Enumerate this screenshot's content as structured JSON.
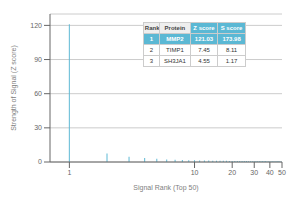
{
  "chart_data": {
    "type": "bar",
    "xlabel": "Signal Rank (Top 50)",
    "ylabel": "Strength of Signal (Z score)",
    "x": [
      1,
      2,
      3,
      4,
      5,
      6,
      7,
      8,
      9,
      10,
      11,
      12,
      13,
      14,
      15,
      16,
      17,
      18,
      19,
      20,
      21,
      22,
      23,
      24,
      25,
      26,
      27,
      28,
      29,
      30,
      31,
      32,
      33,
      34,
      35,
      36,
      37,
      38,
      39,
      40,
      41,
      42,
      43,
      44,
      45,
      46,
      47,
      48,
      49,
      50
    ],
    "values": [
      121.03,
      7.45,
      4.55,
      3.5,
      2.8,
      2.3,
      2.0,
      1.8,
      1.6,
      1.5,
      1.4,
      1.3,
      1.25,
      1.2,
      1.15,
      1.1,
      1.05,
      1.0,
      0.95,
      0.9,
      0.88,
      0.86,
      0.84,
      0.82,
      0.8,
      0.78,
      0.76,
      0.74,
      0.72,
      0.7,
      0.68,
      0.66,
      0.64,
      0.62,
      0.6,
      0.58,
      0.56,
      0.54,
      0.52,
      0.5,
      0.48,
      0.46,
      0.44,
      0.42,
      0.4,
      0.38,
      0.36,
      0.34,
      0.32,
      0.3
    ],
    "color": "#5bb8d4",
    "log": "x",
    "xlim": [
      0.7,
      50
    ],
    "xticks": [
      1,
      10,
      20,
      30,
      40,
      50
    ],
    "ylim": [
      0,
      130
    ],
    "yticks": [
      0,
      30,
      60,
      90,
      120
    ],
    "grid": true,
    "table": {
      "headers": [
        "Rank",
        "Protein",
        "Z score",
        "S score"
      ],
      "rows": [
        [
          "1",
          "MMP2",
          "121.03",
          "173.98"
        ],
        [
          "2",
          "TIMP1",
          "7.45",
          "8.11"
        ],
        [
          "3",
          "SH3JA1",
          "4.55",
          "1.17"
        ]
      ]
    }
  }
}
